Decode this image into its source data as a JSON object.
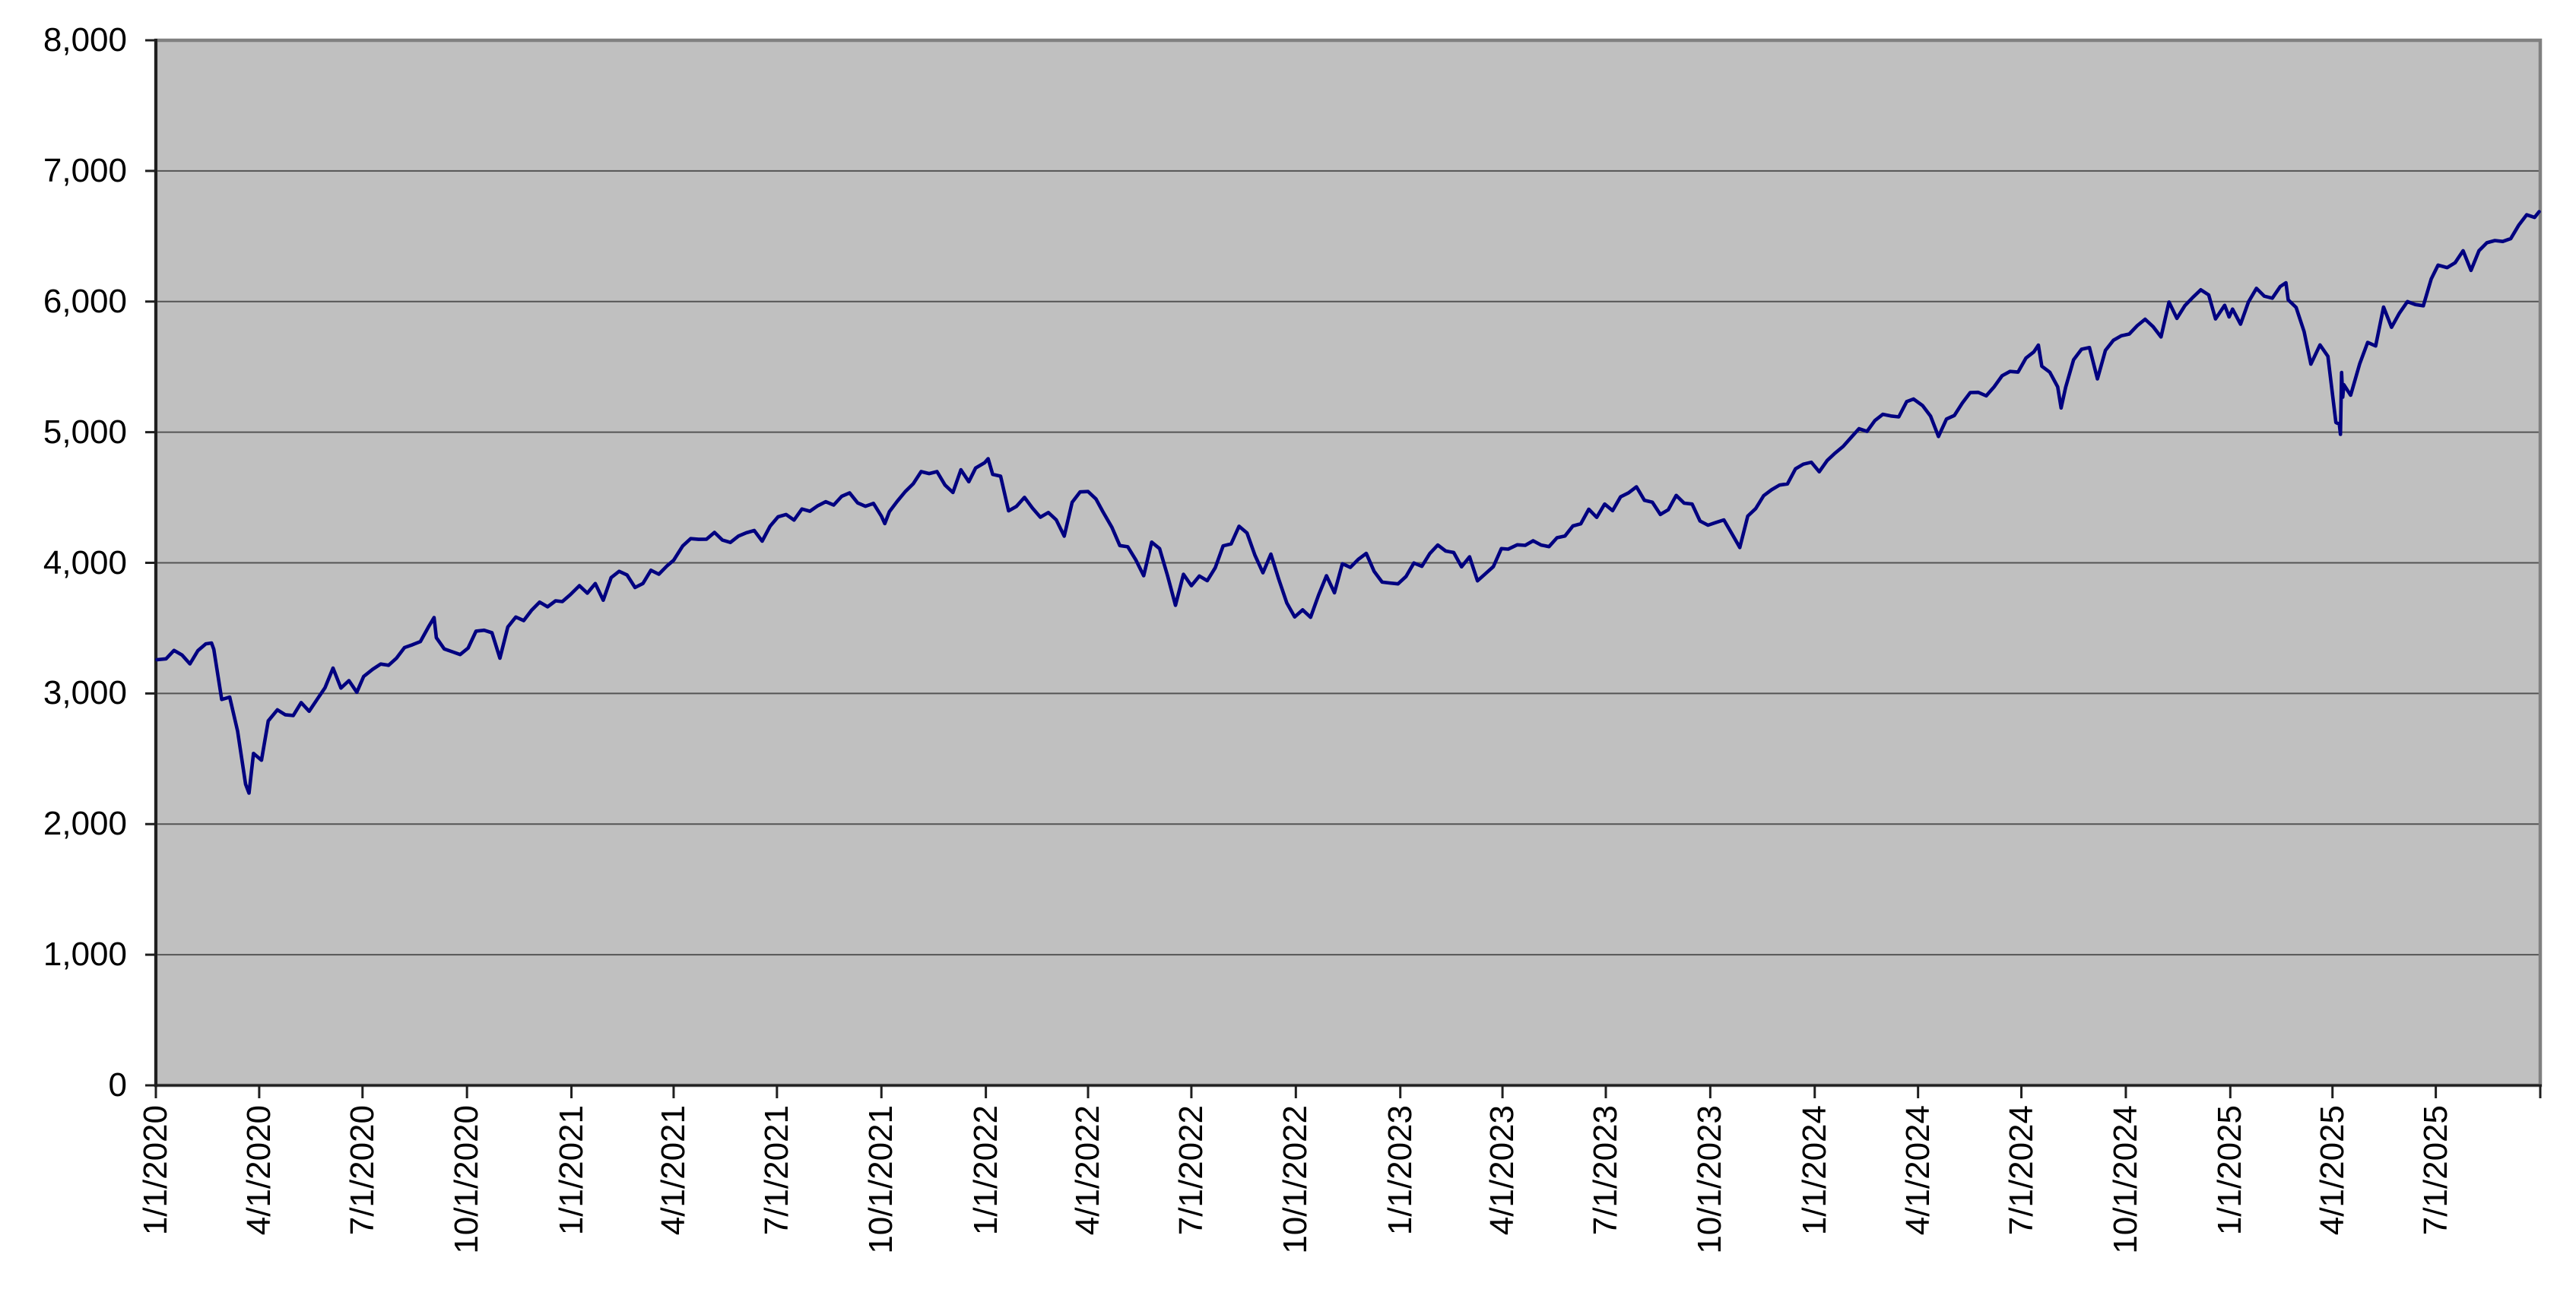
{
  "chart_data": {
    "type": "line",
    "title": "",
    "xlabel": "",
    "ylabel": "",
    "grid": true,
    "legend": false,
    "x_axis": {
      "start": "1/1/2020",
      "end": "10/1/2025",
      "tick_labels": [
        "1/1/2020",
        "4/1/2020",
        "7/1/2020",
        "10/1/2020",
        "1/1/2021",
        "4/1/2021",
        "7/1/2021",
        "10/1/2021",
        "1/1/2022",
        "4/1/2022",
        "7/1/2022",
        "10/1/2022",
        "1/1/2023",
        "4/1/2023",
        "7/1/2023",
        "10/1/2023",
        "1/1/2024",
        "4/1/2024",
        "7/1/2024",
        "10/1/2024",
        "1/1/2025",
        "4/1/2025",
        "7/1/2025"
      ]
    },
    "y_axis": {
      "min": 0,
      "max": 8000,
      "tick_interval": 1000,
      "tick_labels": [
        "0",
        "1,000",
        "2,000",
        "3,000",
        "4,000",
        "5,000",
        "6,000",
        "7,000",
        "8,000"
      ]
    },
    "colors": {
      "line": "#000080",
      "plot_background": "#C0C0C0",
      "gridline": "#545454",
      "plot_border": "#808080",
      "axis": "#1F1F1F",
      "label_text": "#000000",
      "outer_background": "#FFFFFF"
    },
    "series": [
      {
        "dates": [
          "1/2/2020",
          "1/10/2020",
          "1/17/2020",
          "1/24/2020",
          "1/31/2020",
          "2/7/2020",
          "2/14/2020",
          "2/19/2020",
          "2/21/2020",
          "2/28/2020",
          "3/6/2020",
          "3/13/2020",
          "3/20/2020",
          "3/23/2020",
          "3/27/2020",
          "4/3/2020",
          "4/9/2020",
          "4/17/2020",
          "4/24/2020",
          "5/1/2020",
          "5/8/2020",
          "5/15/2020",
          "5/22/2020",
          "5/29/2020",
          "6/5/2020",
          "6/12/2020",
          "6/19/2020",
          "6/26/2020",
          "7/2/2020",
          "7/10/2020",
          "7/17/2020",
          "7/24/2020",
          "7/31/2020",
          "8/7/2020",
          "8/14/2020",
          "8/21/2020",
          "8/28/2020",
          "9/2/2020",
          "9/4/2020",
          "9/11/2020",
          "9/18/2020",
          "9/25/2020",
          "10/2/2020",
          "10/9/2020",
          "10/16/2020",
          "10/23/2020",
          "10/30/2020",
          "11/6/2020",
          "11/13/2020",
          "11/20/2020",
          "11/27/2020",
          "12/4/2020",
          "12/11/2020",
          "12/18/2020",
          "12/24/2020",
          "12/31/2020",
          "1/8/2021",
          "1/15/2021",
          "1/22/2021",
          "1/29/2021",
          "2/5/2021",
          "2/12/2021",
          "2/19/2021",
          "2/26/2021",
          "3/5/2021",
          "3/12/2021",
          "3/19/2021",
          "3/26/2021",
          "4/1/2021",
          "4/9/2021",
          "4/16/2021",
          "4/23/2021",
          "4/30/2021",
          "5/7/2021",
          "5/14/2021",
          "5/21/2021",
          "5/28/2021",
          "6/4/2021",
          "6/11/2021",
          "6/18/2021",
          "6/25/2021",
          "7/2/2021",
          "7/9/2021",
          "7/16/2021",
          "7/23/2021",
          "7/30/2021",
          "8/6/2021",
          "8/13/2021",
          "8/20/2021",
          "8/27/2021",
          "9/3/2021",
          "9/10/2021",
          "9/17/2021",
          "9/24/2021",
          "10/1/2021",
          "10/4/2021",
          "10/8/2021",
          "10/15/2021",
          "10/22/2021",
          "10/29/2021",
          "11/5/2021",
          "11/12/2021",
          "11/19/2021",
          "11/26/2021",
          "12/3/2021",
          "12/10/2021",
          "12/17/2021",
          "12/23/2021",
          "12/31/2021",
          "1/3/2022",
          "1/7/2022",
          "1/14/2022",
          "1/21/2022",
          "1/28/2022",
          "2/4/2022",
          "2/11/2022",
          "2/18/2022",
          "2/25/2022",
          "3/4/2022",
          "3/11/2022",
          "3/18/2022",
          "3/25/2022",
          "4/1/2022",
          "4/8/2022",
          "4/14/2022",
          "4/22/2022",
          "4/29/2022",
          "5/6/2022",
          "5/13/2022",
          "5/20/2022",
          "5/27/2022",
          "6/3/2022",
          "6/10/2022",
          "6/17/2022",
          "6/24/2022",
          "7/1/2022",
          "7/8/2022",
          "7/15/2022",
          "7/22/2022",
          "7/29/2022",
          "8/5/2022",
          "8/12/2022",
          "8/19/2022",
          "8/26/2022",
          "9/2/2022",
          "9/9/2022",
          "9/16/2022",
          "9/23/2022",
          "9/30/2022",
          "10/7/2022",
          "10/14/2022",
          "10/21/2022",
          "10/28/2022",
          "11/4/2022",
          "11/11/2022",
          "11/18/2022",
          "11/25/2022",
          "12/2/2022",
          "12/9/2022",
          "12/16/2022",
          "12/23/2022",
          "12/30/2022",
          "1/6/2023",
          "1/13/2023",
          "1/20/2023",
          "1/27/2023",
          "2/3/2023",
          "2/10/2023",
          "2/17/2023",
          "2/24/2023",
          "3/3/2023",
          "3/10/2023",
          "3/17/2023",
          "3/24/2023",
          "3/31/2023",
          "4/6/2023",
          "4/14/2023",
          "4/21/2023",
          "4/28/2023",
          "5/5/2023",
          "5/12/2023",
          "5/19/2023",
          "5/26/2023",
          "6/2/2023",
          "6/9/2023",
          "6/16/2023",
          "6/23/2023",
          "6/30/2023",
          "7/7/2023",
          "7/14/2023",
          "7/21/2023",
          "7/28/2023",
          "8/4/2023",
          "8/11/2023",
          "8/18/2023",
          "8/25/2023",
          "9/1/2023",
          "9/8/2023",
          "9/15/2023",
          "9/22/2023",
          "9/29/2023",
          "10/6/2023",
          "10/13/2023",
          "10/20/2023",
          "10/27/2023",
          "11/3/2023",
          "11/10/2023",
          "11/17/2023",
          "11/24/2023",
          "12/1/2023",
          "12/8/2023",
          "12/15/2023",
          "12/22/2023",
          "12/29/2023",
          "1/5/2024",
          "1/12/2024",
          "1/19/2024",
          "1/26/2024",
          "2/2/2024",
          "2/9/2024",
          "2/16/2024",
          "2/23/2024",
          "3/1/2024",
          "3/8/2024",
          "3/15/2024",
          "3/22/2024",
          "3/28/2024",
          "4/5/2024",
          "4/12/2024",
          "4/19/2024",
          "4/26/2024",
          "5/3/2024",
          "5/10/2024",
          "5/17/2024",
          "5/24/2024",
          "5/31/2024",
          "6/7/2024",
          "6/14/2024",
          "6/21/2024",
          "6/28/2024",
          "7/5/2024",
          "7/12/2024",
          "7/16/2024",
          "7/19/2024",
          "7/26/2024",
          "8/2/2024",
          "8/5/2024",
          "8/9/2024",
          "8/16/2024",
          "8/23/2024",
          "8/30/2024",
          "9/6/2024",
          "9/13/2024",
          "9/20/2024",
          "9/27/2024",
          "10/4/2024",
          "10/11/2024",
          "10/18/2024",
          "10/25/2024",
          "11/1/2024",
          "11/8/2024",
          "11/15/2024",
          "11/22/2024",
          "11/29/2024",
          "12/6/2024",
          "12/13/2024",
          "12/19/2024",
          "12/27/2024",
          "12/31/2024",
          "1/3/2025",
          "1/10/2025",
          "1/17/2025",
          "1/24/2025",
          "1/31/2025",
          "2/7/2025",
          "2/14/2025",
          "2/19/2025",
          "2/21/2025",
          "2/28/2025",
          "3/7/2025",
          "3/13/2025",
          "3/21/2025",
          "3/28/2025",
          "4/4/2025",
          "4/7/2025",
          "4/8/2025",
          "4/9/2025",
          "4/10/2025",
          "4/11/2025",
          "4/17/2025",
          "4/25/2025",
          "5/2/2025",
          "5/9/2025",
          "5/16/2025",
          "5/23/2025",
          "5/30/2025",
          "6/6/2025",
          "6/13/2025",
          "6/20/2025",
          "6/27/2025",
          "7/3/2025",
          "7/11/2025",
          "7/18/2025",
          "7/25/2025",
          "8/1/2025",
          "8/8/2025",
          "8/15/2025",
          "8/22/2025",
          "8/29/2025",
          "9/5/2025",
          "9/12/2025",
          "9/19/2025",
          "9/26/2025",
          "9/30/2025"
        ],
        "values": [
          3258,
          3265,
          3330,
          3295,
          3226,
          3328,
          3380,
          3386,
          3338,
          2954,
          2972,
          2711,
          2305,
          2237,
          2541,
          2489,
          2790,
          2875,
          2837,
          2831,
          2930,
          2864,
          2955,
          3044,
          3194,
          3041,
          3098,
          3009,
          3130,
          3185,
          3225,
          3216,
          3271,
          3351,
          3373,
          3397,
          3508,
          3581,
          3427,
          3341,
          3319,
          3298,
          3348,
          3477,
          3484,
          3465,
          3270,
          3509,
          3585,
          3558,
          3638,
          3699,
          3663,
          3709,
          3703,
          3756,
          3825,
          3768,
          3841,
          3714,
          3887,
          3935,
          3907,
          3811,
          3842,
          3943,
          3913,
          3975,
          4020,
          4129,
          4185,
          4180,
          4181,
          4233,
          4174,
          4156,
          4204,
          4230,
          4247,
          4166,
          4281,
          4352,
          4370,
          4327,
          4412,
          4395,
          4437,
          4468,
          4442,
          4509,
          4535,
          4459,
          4433,
          4455,
          4357,
          4300,
          4391,
          4471,
          4545,
          4605,
          4698,
          4683,
          4698,
          4595,
          4538,
          4712,
          4621,
          4726,
          4766,
          4797,
          4677,
          4663,
          4398,
          4432,
          4501,
          4419,
          4349,
          4385,
          4329,
          4204,
          4463,
          4543,
          4546,
          4488,
          4393,
          4272,
          4132,
          4123,
          4024,
          3901,
          4158,
          4109,
          3901,
          3675,
          3912,
          3825,
          3899,
          3863,
          3962,
          4130,
          4145,
          4280,
          4228,
          4058,
          3924,
          4067,
          3873,
          3693,
          3586,
          3640,
          3583,
          3753,
          3901,
          3771,
          3993,
          3965,
          4026,
          4072,
          3934,
          3852,
          3845,
          3839,
          3895,
          3999,
          3973,
          4071,
          4136,
          4090,
          4079,
          3970,
          4046,
          3862,
          3917,
          3971,
          4109,
          4105,
          4138,
          4134,
          4169,
          4136,
          4124,
          4192,
          4205,
          4282,
          4299,
          4410,
          4348,
          4450,
          4399,
          4505,
          4536,
          4582,
          4478,
          4464,
          4370,
          4406,
          4516,
          4457,
          4450,
          4320,
          4288,
          4309,
          4328,
          4224,
          4117,
          4358,
          4415,
          4514,
          4559,
          4595,
          4604,
          4719,
          4755,
          4770,
          4697,
          4784,
          4840,
          4891,
          4959,
          5027,
          5006,
          5089,
          5137,
          5124,
          5117,
          5234,
          5254,
          5204,
          5123,
          4967,
          5100,
          5128,
          5223,
          5303,
          5305,
          5278,
          5347,
          5432,
          5465,
          5460,
          5567,
          5615,
          5667,
          5505,
          5459,
          5347,
          5186,
          5344,
          5554,
          5635,
          5648,
          5408,
          5626,
          5703,
          5738,
          5751,
          5815,
          5865,
          5808,
          5729,
          5996,
          5871,
          5969,
          6032,
          6090,
          6051,
          5867,
          5971,
          5882,
          5942,
          5827,
          5997,
          6101,
          6041,
          6026,
          6115,
          6144,
          6013,
          5955,
          5770,
          5521,
          5668,
          5581,
          5074,
          5062,
          4983,
          5457,
          5268,
          5363,
          5283,
          5525,
          5687,
          5660,
          5958,
          5803,
          5912,
          6000,
          5977,
          5968,
          6173,
          6279,
          6260,
          6297,
          6389,
          6238,
          6389,
          6450,
          6467,
          6460,
          6482,
          6584,
          6664,
          6644,
          6688
        ]
      }
    ]
  }
}
